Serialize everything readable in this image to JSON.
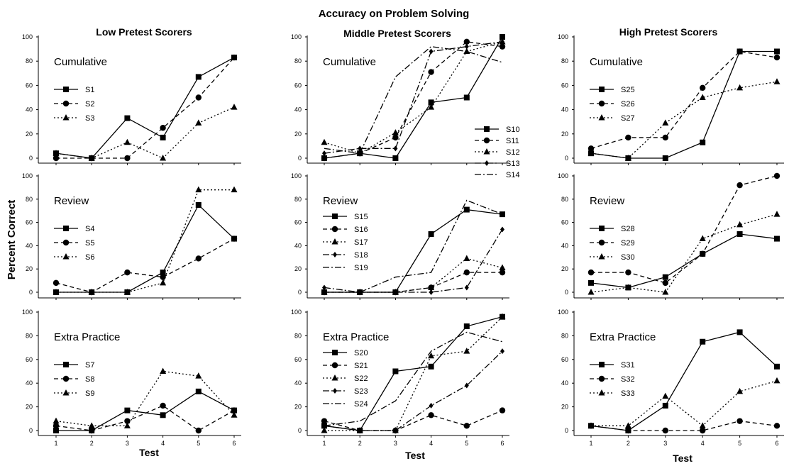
{
  "figure": {
    "title": "Accuracy on Problem Solving",
    "ylabel": "Percent Correct",
    "xlabel": "Test",
    "column_titles": [
      "Low Pretest Scorers",
      "Middle Pretest Scorers",
      "High Pretest Scorers"
    ],
    "y_ticks": [
      "0",
      "20",
      "40",
      "60",
      "80",
      "100"
    ],
    "x_ticks": [
      "1",
      "2",
      "3",
      "4",
      "5",
      "6"
    ]
  },
  "chart_data": [
    {
      "type": "line",
      "group": "Low Pretest Scorers",
      "title": "Cumulative",
      "x": [
        1,
        2,
        3,
        4,
        5,
        6
      ],
      "ylim": [
        0,
        100
      ],
      "series": [
        {
          "name": "S1",
          "marker": "square",
          "dash": "solid",
          "values": [
            4,
            0,
            33,
            17,
            67,
            83
          ]
        },
        {
          "name": "S2",
          "marker": "circle",
          "dash": "dashed",
          "values": [
            0,
            0,
            0,
            25,
            50,
            83
          ]
        },
        {
          "name": "S3",
          "marker": "triangle",
          "dash": "dotted",
          "values": [
            4,
            0,
            13,
            0,
            29,
            42
          ]
        }
      ]
    },
    {
      "type": "line",
      "group": "Middle Pretest Scorers",
      "title": "Cumulative",
      "x": [
        1,
        2,
        3,
        4,
        5,
        6
      ],
      "ylim": [
        0,
        100
      ],
      "series": [
        {
          "name": "S10",
          "marker": "square",
          "dash": "solid",
          "values": [
            0,
            4,
            0,
            46,
            50,
            100
          ]
        },
        {
          "name": "S11",
          "marker": "circle",
          "dash": "dashed",
          "values": [
            0,
            4,
            17,
            71,
            96,
            92
          ]
        },
        {
          "name": "S12",
          "marker": "triangle",
          "dash": "dotted",
          "values": [
            13,
            4,
            21,
            42,
            88,
            96
          ]
        },
        {
          "name": "S13",
          "marker": "diamond",
          "dash": "dashdot",
          "values": [
            4,
            8,
            8,
            88,
            92,
            96
          ]
        },
        {
          "name": "S14",
          "marker": "none",
          "dash": "dashdot",
          "values": [
            8,
            4,
            67,
            92,
            88,
            79
          ]
        }
      ]
    },
    {
      "type": "line",
      "group": "High Pretest Scorers",
      "title": "Cumulative",
      "x": [
        1,
        2,
        3,
        4,
        5,
        6
      ],
      "ylim": [
        0,
        100
      ],
      "series": [
        {
          "name": "S25",
          "marker": "square",
          "dash": "solid",
          "values": [
            4,
            0,
            0,
            13,
            88,
            88
          ]
        },
        {
          "name": "S26",
          "marker": "circle",
          "dash": "dashed",
          "values": [
            8,
            17,
            17,
            58,
            88,
            83
          ]
        },
        {
          "name": "S27",
          "marker": "triangle",
          "dash": "dotted",
          "values": [
            4,
            0,
            29,
            50,
            58,
            63
          ]
        }
      ]
    },
    {
      "type": "line",
      "group": "Low Pretest Scorers",
      "title": "Review",
      "x": [
        1,
        2,
        3,
        4,
        5,
        6
      ],
      "ylim": [
        0,
        100
      ],
      "series": [
        {
          "name": "S4",
          "marker": "square",
          "dash": "solid",
          "values": [
            0,
            0,
            0,
            17,
            75,
            46
          ]
        },
        {
          "name": "S5",
          "marker": "circle",
          "dash": "dashed",
          "values": [
            8,
            0,
            17,
            13,
            29,
            46
          ]
        },
        {
          "name": "S6",
          "marker": "triangle",
          "dash": "dotted",
          "values": [
            0,
            0,
            0,
            8,
            88,
            88
          ]
        }
      ]
    },
    {
      "type": "line",
      "group": "Middle Pretest Scorers",
      "title": "Review",
      "x": [
        1,
        2,
        3,
        4,
        5,
        6
      ],
      "ylim": [
        0,
        100
      ],
      "series": [
        {
          "name": "S15",
          "marker": "square",
          "dash": "solid",
          "values": [
            0,
            0,
            0,
            50,
            71,
            67
          ]
        },
        {
          "name": "S16",
          "marker": "circle",
          "dash": "dashed",
          "values": [
            0,
            0,
            0,
            4,
            17,
            17
          ]
        },
        {
          "name": "S17",
          "marker": "triangle",
          "dash": "dotted",
          "values": [
            0,
            0,
            0,
            4,
            29,
            21
          ]
        },
        {
          "name": "S18",
          "marker": "diamond",
          "dash": "dashdot",
          "values": [
            4,
            0,
            0,
            0,
            4,
            54
          ]
        },
        {
          "name": "S19",
          "marker": "none",
          "dash": "dashdot",
          "values": [
            0,
            0,
            13,
            17,
            79,
            67
          ]
        }
      ]
    },
    {
      "type": "line",
      "group": "High Pretest Scorers",
      "title": "Review",
      "x": [
        1,
        2,
        3,
        4,
        5,
        6
      ],
      "ylim": [
        0,
        100
      ],
      "series": [
        {
          "name": "S28",
          "marker": "square",
          "dash": "solid",
          "values": [
            8,
            4,
            13,
            33,
            50,
            46
          ]
        },
        {
          "name": "S29",
          "marker": "circle",
          "dash": "dashed",
          "values": [
            17,
            17,
            8,
            33,
            92,
            100
          ]
        },
        {
          "name": "S30",
          "marker": "triangle",
          "dash": "dotted",
          "values": [
            0,
            4,
            0,
            46,
            58,
            67
          ]
        }
      ]
    },
    {
      "type": "line",
      "group": "Low Pretest Scorers",
      "title": "Extra Practice",
      "x": [
        1,
        2,
        3,
        4,
        5,
        6
      ],
      "ylim": [
        0,
        100
      ],
      "series": [
        {
          "name": "S7",
          "marker": "square",
          "dash": "solid",
          "values": [
            0,
            0,
            17,
            13,
            33,
            17
          ]
        },
        {
          "name": "S8",
          "marker": "circle",
          "dash": "dashed",
          "values": [
            4,
            0,
            8,
            21,
            0,
            17
          ]
        },
        {
          "name": "S9",
          "marker": "triangle",
          "dash": "dotted",
          "values": [
            8,
            4,
            4,
            50,
            46,
            13
          ]
        }
      ]
    },
    {
      "type": "line",
      "group": "Middle Pretest Scorers",
      "title": "Extra Practice",
      "x": [
        1,
        2,
        3,
        4,
        5,
        6
      ],
      "ylim": [
        0,
        100
      ],
      "series": [
        {
          "name": "S20",
          "marker": "square",
          "dash": "solid",
          "values": [
            4,
            0,
            50,
            54,
            88,
            96
          ]
        },
        {
          "name": "S21",
          "marker": "circle",
          "dash": "dashed",
          "values": [
            8,
            0,
            0,
            13,
            4,
            17
          ]
        },
        {
          "name": "S22",
          "marker": "triangle",
          "dash": "dotted",
          "values": [
            0,
            0,
            0,
            63,
            67,
            96
          ]
        },
        {
          "name": "S23",
          "marker": "diamond",
          "dash": "dashdot",
          "values": [
            4,
            0,
            0,
            21,
            38,
            67
          ]
        },
        {
          "name": "S24",
          "marker": "none",
          "dash": "dashdot",
          "values": [
            4,
            8,
            25,
            67,
            83,
            75
          ]
        }
      ]
    },
    {
      "type": "line",
      "group": "High Pretest Scorers",
      "title": "Extra Practice",
      "x": [
        1,
        2,
        3,
        4,
        5,
        6
      ],
      "ylim": [
        0,
        100
      ],
      "series": [
        {
          "name": "S31",
          "marker": "square",
          "dash": "solid",
          "values": [
            4,
            0,
            21,
            75,
            83,
            54
          ]
        },
        {
          "name": "S32",
          "marker": "circle",
          "dash": "dashed",
          "values": [
            4,
            0,
            0,
            0,
            8,
            4
          ]
        },
        {
          "name": "S33",
          "marker": "triangle",
          "dash": "dotted",
          "values": [
            4,
            4,
            29,
            4,
            33,
            42
          ]
        }
      ]
    }
  ]
}
